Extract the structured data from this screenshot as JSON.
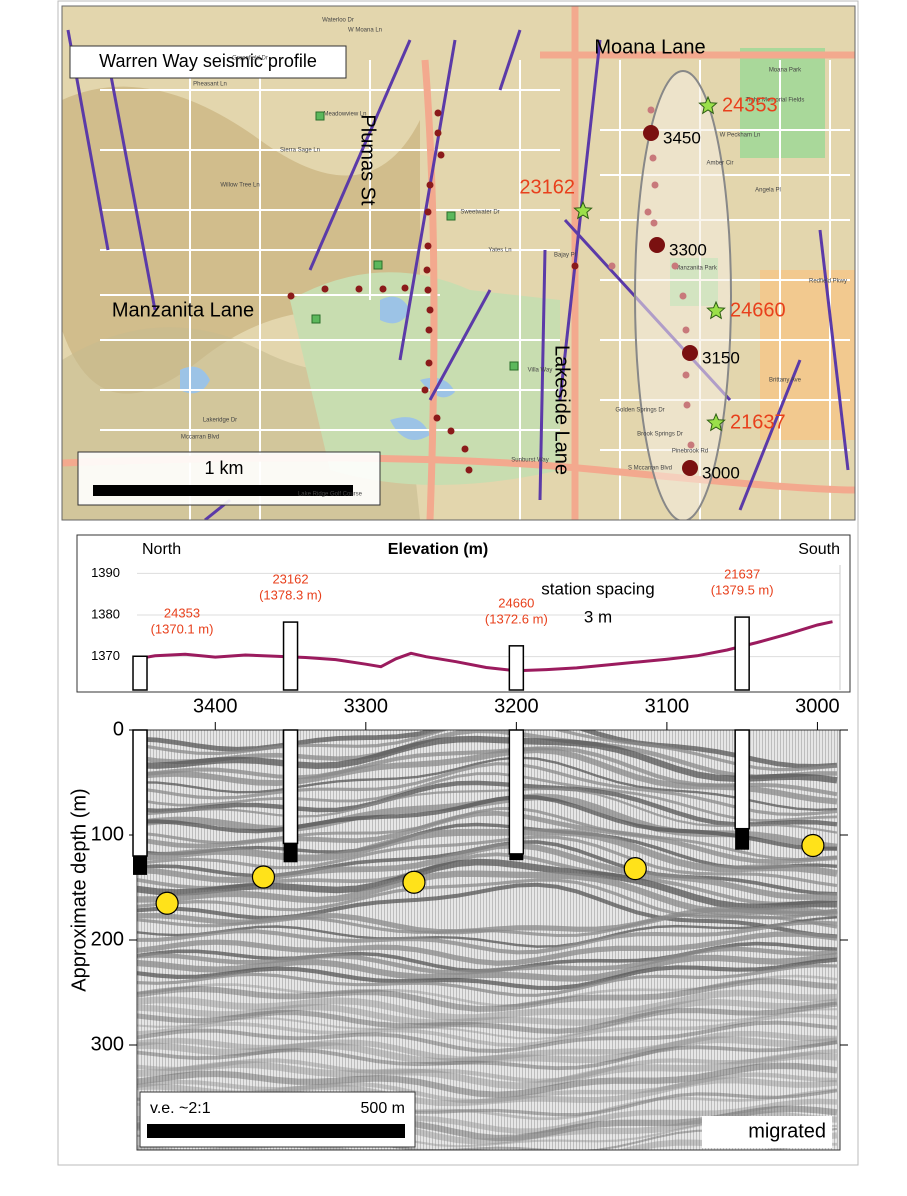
{
  "map": {
    "title": "Warren Way seismic profile",
    "scale_label": "1 km",
    "roads": [
      "Moana Lane",
      "Plumas St",
      "Manzanita Lane",
      "Lakeside Lane"
    ],
    "streets": [
      "Waterloo Dr",
      "W Moana Ln",
      "Greenfield Dr",
      "Pheasant Ln",
      "Meadowview Ln",
      "Sierra Sage Ln",
      "Willow Tree Ln",
      "Sweetwater Dr",
      "Yates Ln",
      "Bajay Pl",
      "W Peckham Ln",
      "Amber Cir",
      "Angela Pl",
      "Moana Park",
      "Tighe Memorial Fields",
      "Manzanita Park",
      "Brittany Ave",
      "Redfield Pkwy",
      "Lakeridge Dr",
      "Villa Way",
      "Golden Springs Dr",
      "Brook Springs Dr",
      "Pinebrook Rd",
      "Sunburst Way",
      "S Mccarran Blvd",
      "Mccarran Blvd",
      "Lake Ridge Golf Course"
    ],
    "stations": [
      "3450",
      "3300",
      "3150",
      "3000"
    ],
    "wells": [
      "24353",
      "23162",
      "24660",
      "21637"
    ]
  },
  "chart_data": [
    {
      "type": "line",
      "title": "Elevation (m)",
      "left_label": "North",
      "right_label": "South",
      "annotation": [
        "station spacing",
        "3 m"
      ],
      "x": [
        3450,
        3440,
        3420,
        3400,
        3380,
        3360,
        3340,
        3320,
        3300,
        3290,
        3280,
        3270,
        3260,
        3240,
        3220,
        3200,
        3180,
        3160,
        3140,
        3120,
        3100,
        3080,
        3060,
        3040,
        3020,
        3000,
        2990
      ],
      "values": [
        1369.6,
        1370.2,
        1370.6,
        1369.9,
        1370.4,
        1370.1,
        1369.8,
        1369.3,
        1368.2,
        1367.6,
        1369.5,
        1370.8,
        1370.0,
        1368.8,
        1367.4,
        1366.6,
        1366.9,
        1367.3,
        1368.0,
        1368.7,
        1369.4,
        1370.2,
        1371.6,
        1373.4,
        1375.4,
        1377.6,
        1378.4
      ],
      "color": "#9b1b5e",
      "xlim": [
        3452,
        2985
      ],
      "xticks": [
        3400,
        3300,
        3200,
        3100,
        3000
      ],
      "ylim": [
        1362,
        1392
      ],
      "yticks": [
        1370,
        1380,
        1390
      ],
      "grid": true,
      "wells": {
        "names": [
          "24353",
          "23162",
          "24660",
          "21637"
        ],
        "x": [
          3450,
          3350,
          3200,
          3050
        ],
        "values": [
          1370.1,
          1378.3,
          1372.6,
          1379.5
        ],
        "value_labels": [
          "(1370.1 m)",
          "(1378.3 m)",
          "(1372.6 m)",
          "(1379.5 m)"
        ],
        "color": "#e8401c"
      }
    },
    {
      "type": "scatter",
      "ylabel": "Approximate depth (m)",
      "x": [
        3432,
        3368,
        3268,
        3121,
        3003
      ],
      "values": [
        165,
        140,
        145,
        132,
        110
      ],
      "color": "#ffe21a",
      "xlim": [
        3452,
        2985
      ],
      "ylim": [
        0,
        400
      ],
      "yticks": [
        0,
        100,
        200,
        300
      ],
      "wells": {
        "x": [
          3450,
          3350,
          3200,
          3050
        ],
        "white_bottom": [
          120,
          108,
          118,
          94
        ],
        "black_bottom": [
          138,
          126,
          124,
          114
        ]
      },
      "annotations": [
        "v.e. ~2:1",
        "500 m",
        "migrated"
      ]
    }
  ]
}
